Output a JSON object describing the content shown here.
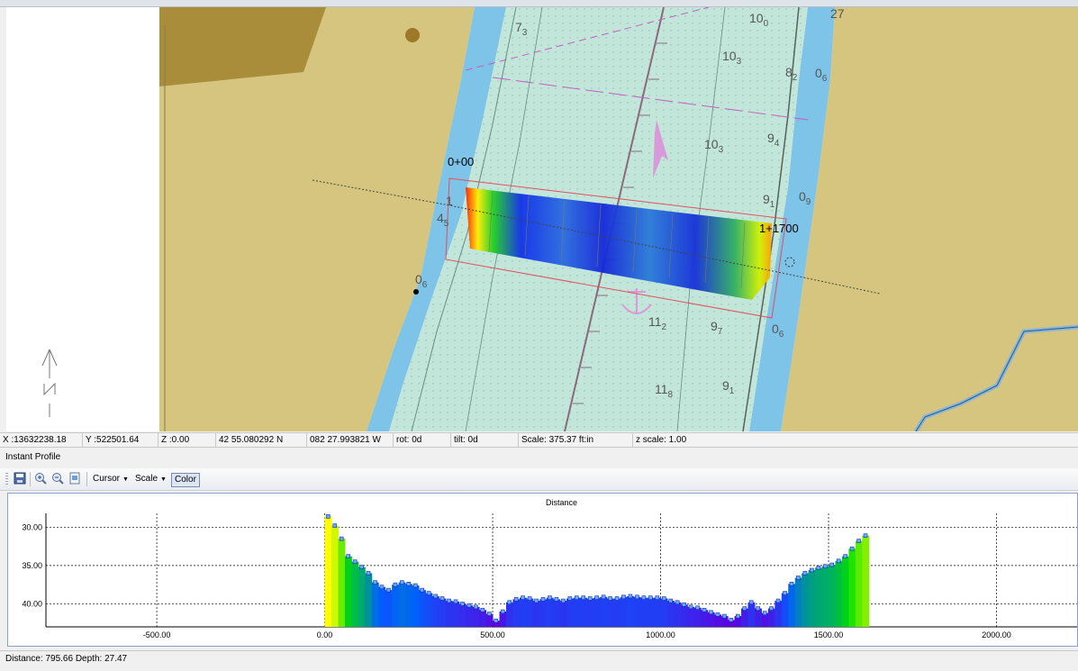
{
  "map": {
    "depth_labels": [
      {
        "main": "7",
        "sub": "3"
      },
      {
        "main": "10",
        "sub": "0"
      },
      {
        "main": "27",
        "sub": ""
      },
      {
        "main": "10",
        "sub": "3"
      },
      {
        "main": "8",
        "sub": "2"
      },
      {
        "main": "0",
        "sub": "6"
      },
      {
        "main": "10",
        "sub": "3"
      },
      {
        "main": "9",
        "sub": "4"
      },
      {
        "main": "9",
        "sub": "1"
      },
      {
        "main": "0",
        "sub": "9"
      },
      {
        "main": "4",
        "sub": "5"
      },
      {
        "main": "1",
        "sub": ""
      },
      {
        "main": "0",
        "sub": "6"
      },
      {
        "main": "11",
        "sub": "2"
      },
      {
        "main": "9",
        "sub": "7"
      },
      {
        "main": "0",
        "sub": "6"
      },
      {
        "main": "11",
        "sub": "8"
      },
      {
        "main": "9",
        "sub": "1"
      }
    ],
    "station_start_label": "0+00",
    "station_end_label": "1+1700"
  },
  "status": {
    "x": "X :13632238.18",
    "y": "Y :522501.64",
    "z": "Z :0.00",
    "lat": "42 55.080292 N",
    "lon": "082 27.993821 W",
    "rot": "rot:  0d",
    "tilt": "tilt:  0d",
    "scale": "Scale: 375.37 ft:in",
    "zscale": "z scale: 1.00"
  },
  "panel": {
    "title": "Instant Profile"
  },
  "toolbar": {
    "save_icon": "save-icon",
    "zoom_in_icon": "zoom-in-icon",
    "zoom_out_icon": "zoom-out-icon",
    "export_icon": "export-icon",
    "cursor_label": "Cursor",
    "scale_label": "Scale",
    "color_label": "Color"
  },
  "footer": {
    "text": "Distance: 795.66  Depth: 27.47"
  },
  "chart_data": {
    "type": "bar",
    "title": "Distance",
    "x_ticks": [
      "-500.00",
      "0.00",
      "500.00",
      "1000.00",
      "1500.00",
      "2000.00"
    ],
    "y_ticks": [
      "30.00",
      "35.00",
      "40.00"
    ],
    "xlim": [
      -830,
      2240
    ],
    "ylim": [
      28.2,
      43.0
    ],
    "y_inverted": true,
    "grid": true,
    "color_ramp": [
      "#ffff00",
      "#00e000",
      "#0060ff",
      "#6000e0"
    ],
    "x": [
      0,
      20,
      40,
      60,
      80,
      100,
      120,
      140,
      160,
      180,
      200,
      220,
      240,
      260,
      280,
      300,
      320,
      340,
      360,
      380,
      400,
      420,
      440,
      460,
      480,
      500,
      520,
      540,
      560,
      580,
      600,
      620,
      640,
      660,
      680,
      700,
      720,
      740,
      760,
      780,
      800,
      820,
      840,
      860,
      880,
      900,
      920,
      940,
      960,
      980,
      1000,
      1020,
      1040,
      1060,
      1080,
      1100,
      1120,
      1140,
      1160,
      1180,
      1200,
      1220,
      1240,
      1260,
      1280,
      1300,
      1320,
      1340,
      1360,
      1380,
      1400,
      1420,
      1440,
      1460,
      1480,
      1500,
      1520,
      1540,
      1560,
      1580,
      1600
    ],
    "depth": [
      28.6,
      29.8,
      31.5,
      33.8,
      34.5,
      35.2,
      36.0,
      37.2,
      37.8,
      38.2,
      37.5,
      37.2,
      37.4,
      37.6,
      38.2,
      38.6,
      39.0,
      39.3,
      39.6,
      39.7,
      40.0,
      40.2,
      40.4,
      40.8,
      41.3,
      42.2,
      41.0,
      39.8,
      39.4,
      39.2,
      39.3,
      39.6,
      39.4,
      39.2,
      39.4,
      39.6,
      39.3,
      39.2,
      39.2,
      39.3,
      39.2,
      39.1,
      39.3,
      39.3,
      39.1,
      39.0,
      39.1,
      39.2,
      39.2,
      39.2,
      39.3,
      39.6,
      39.8,
      40.1,
      40.4,
      40.5,
      40.8,
      41.1,
      41.4,
      41.6,
      42.1,
      41.6,
      40.6,
      39.8,
      40.6,
      41.2,
      40.6,
      39.6,
      38.6,
      37.4,
      36.6,
      36.0,
      35.6,
      35.3,
      35.1,
      34.9,
      34.4,
      33.8,
      32.8,
      31.8,
      31.1
    ]
  }
}
